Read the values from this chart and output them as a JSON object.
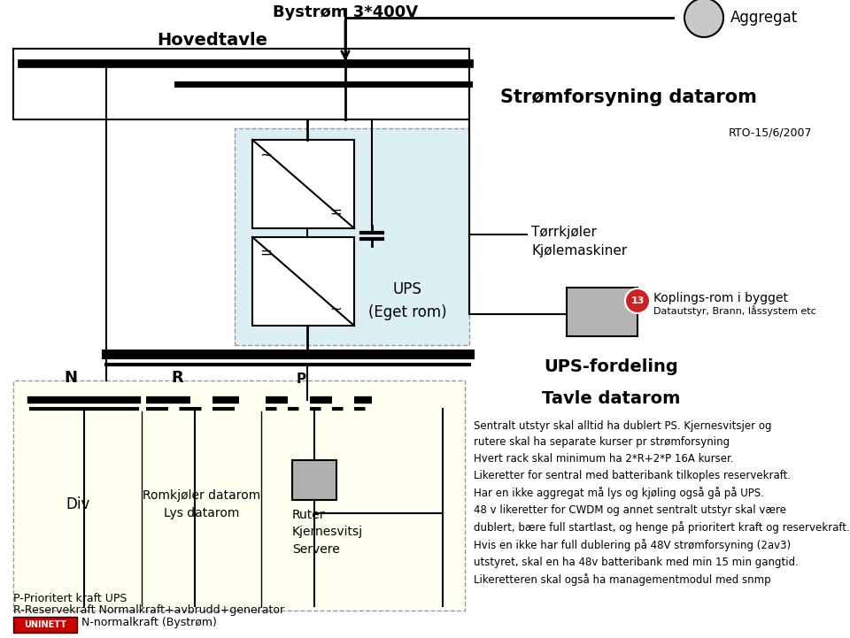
{
  "title": "Strømforsyning datarom",
  "rto": "RTO-15/6/2007",
  "hovedtavle": "Hovedtavle",
  "bystrom": "Bystrøm 3*400V",
  "aggregat": "Aggregat",
  "ups_label": "UPS\n(Eget rom)",
  "ups_fordeling": "UPS-fordeling",
  "tavle_datarom": "Tavle datarom",
  "torkjolar": "Tørrkjøler\nKjølemaskiner",
  "koplings": "Koplings-rom i bygget",
  "datautstyr": "Datautstyr, Brann, låssystem etc",
  "koplings_num": "13",
  "n_label": "N",
  "r_label": "R",
  "p_label": "P",
  "div_label": "Div",
  "romkjolar": "Romkjøler datarom\nLys datarom",
  "ruter_label": "Ruter\nKjernesvitsj\nServere",
  "legend_n": "N-normalkraft (Bystrøm)",
  "legend_r": "R-Reservekraft Normalkraft+avbrudd+generator",
  "legend_p": "P-Prioritert kraft UPS",
  "note1": "Sentralt utstyr skal alltid ha dublert PS. Kjernesvitsjer og\nrutere skal ha separate kurser pr strømforsyning\nHvert rack skal minimum ha 2*R+2*P 16A kurser.\nLikeretter for sentral med batteribank tilkoples reservekraft.\nHar en ikke aggregat må lys og kjøling også gå på UPS.",
  "note2": "48 v likeretter for CWDM og annet sentralt utstyr skal være\ndublert, bære full startlast, og henge på prioritert kraft og reservekraft.\nHvis en ikke har full dublering på 48V strømforsyning (2av3)\nutstyret, skal en ha 48v batteribank med min 15 min gangtid.\nLikeretteren skal også ha managementmodul med snmp",
  "bg_color": "#ffffff",
  "light_blue_bg": "#daeef3",
  "light_yellow_bg": "#ffffd0",
  "uninett_red": "#cc0000"
}
